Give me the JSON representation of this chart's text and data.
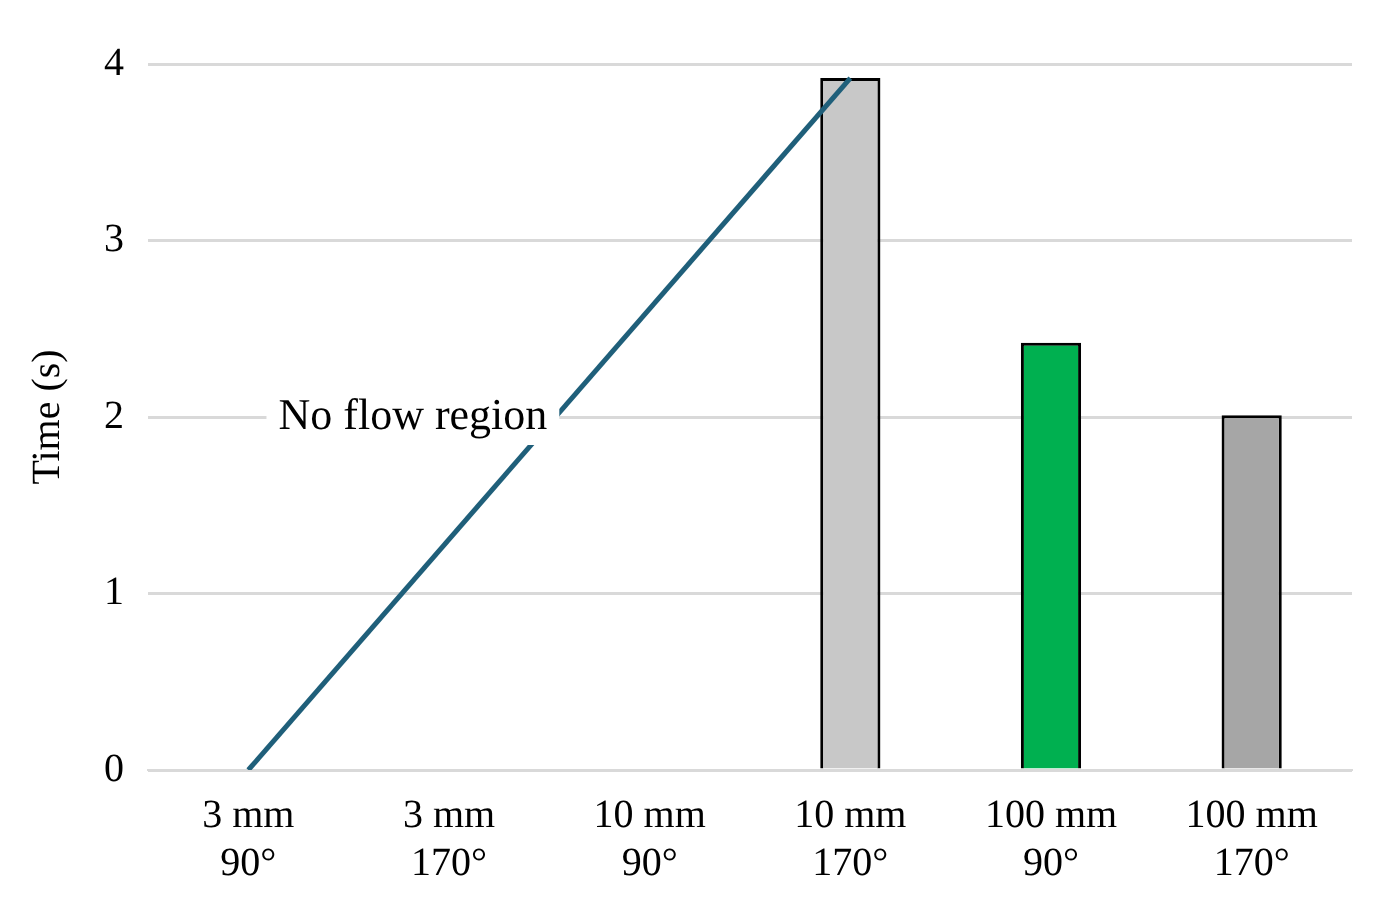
{
  "chart_data": {
    "type": "bar",
    "ylabel": "Time (s)",
    "categories": [
      "3 mm\n90°",
      "3 mm\n170°",
      "10 mm\n90°",
      "10 mm\n170°",
      "100 mm\n90°",
      "100 mm\n170°"
    ],
    "series": [
      {
        "colors": [
          null,
          null,
          null,
          "#c8c8c8",
          "#00b050",
          "#a6a6a6"
        ],
        "values": [
          null,
          null,
          null,
          3.92,
          2.42,
          2.01
        ]
      },
      {
        "type": "line",
        "color": "#1f5f7a",
        "values": [
          0,
          null,
          null,
          3.92,
          null,
          null
        ]
      }
    ],
    "ylim": [
      0,
      4
    ],
    "yticks": [
      0,
      1,
      2,
      3,
      4
    ],
    "grid": "y",
    "legend": false,
    "annotations": [
      "No flow region"
    ]
  }
}
